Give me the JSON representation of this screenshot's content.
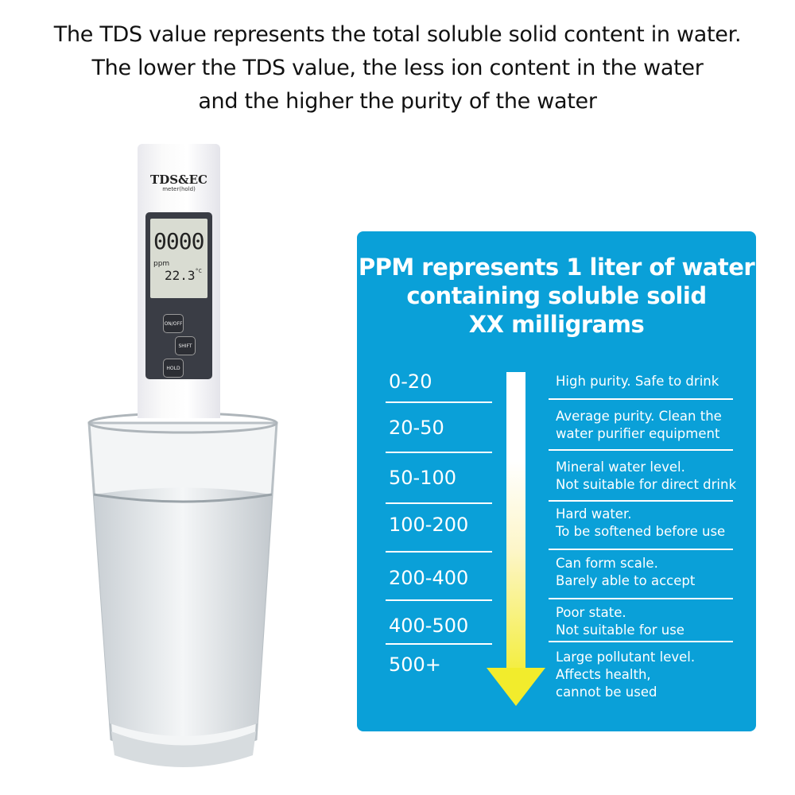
{
  "headline": [
    "The TDS value represents the total soluble solid content in water.",
    "The lower the TDS value, the less ion content in the water",
    "and the higher the purity of the water"
  ],
  "meter": {
    "brand": "TDS&EC",
    "subtitle": "meter(hold)",
    "reading": "0000",
    "unit": "ppm",
    "temperature": "22.3",
    "temp_unit": "°C",
    "buttons": [
      "ON/OFF",
      "SHIFT",
      "HOLD"
    ]
  },
  "panel": {
    "title": [
      "PPM represents 1 liter of water",
      "containing soluble solid",
      "XX milligrams"
    ],
    "rows": [
      {
        "range": "0-20",
        "desc": [
          "High purity. Safe to drink"
        ]
      },
      {
        "range": "20-50",
        "desc": [
          "Average purity. Clean the",
          "water purifier equipment"
        ]
      },
      {
        "range": "50-100",
        "desc": [
          "Mineral water level.",
          "Not suitable for direct drink"
        ]
      },
      {
        "range": "100-200",
        "desc": [
          "Hard water.",
          "To be softened before use"
        ]
      },
      {
        "range": "200-400",
        "desc": [
          "Can form scale.",
          "Barely able to accept"
        ]
      },
      {
        "range": "400-500",
        "desc": [
          "Poor state.",
          "Not suitable for use"
        ]
      },
      {
        "range": "500+",
        "desc": [
          "Large pollutant level.",
          "Affects health,",
          "cannot be used"
        ]
      }
    ],
    "colors": {
      "background": "#0aa0d8",
      "arrow_end": "#f2ec2c"
    }
  }
}
